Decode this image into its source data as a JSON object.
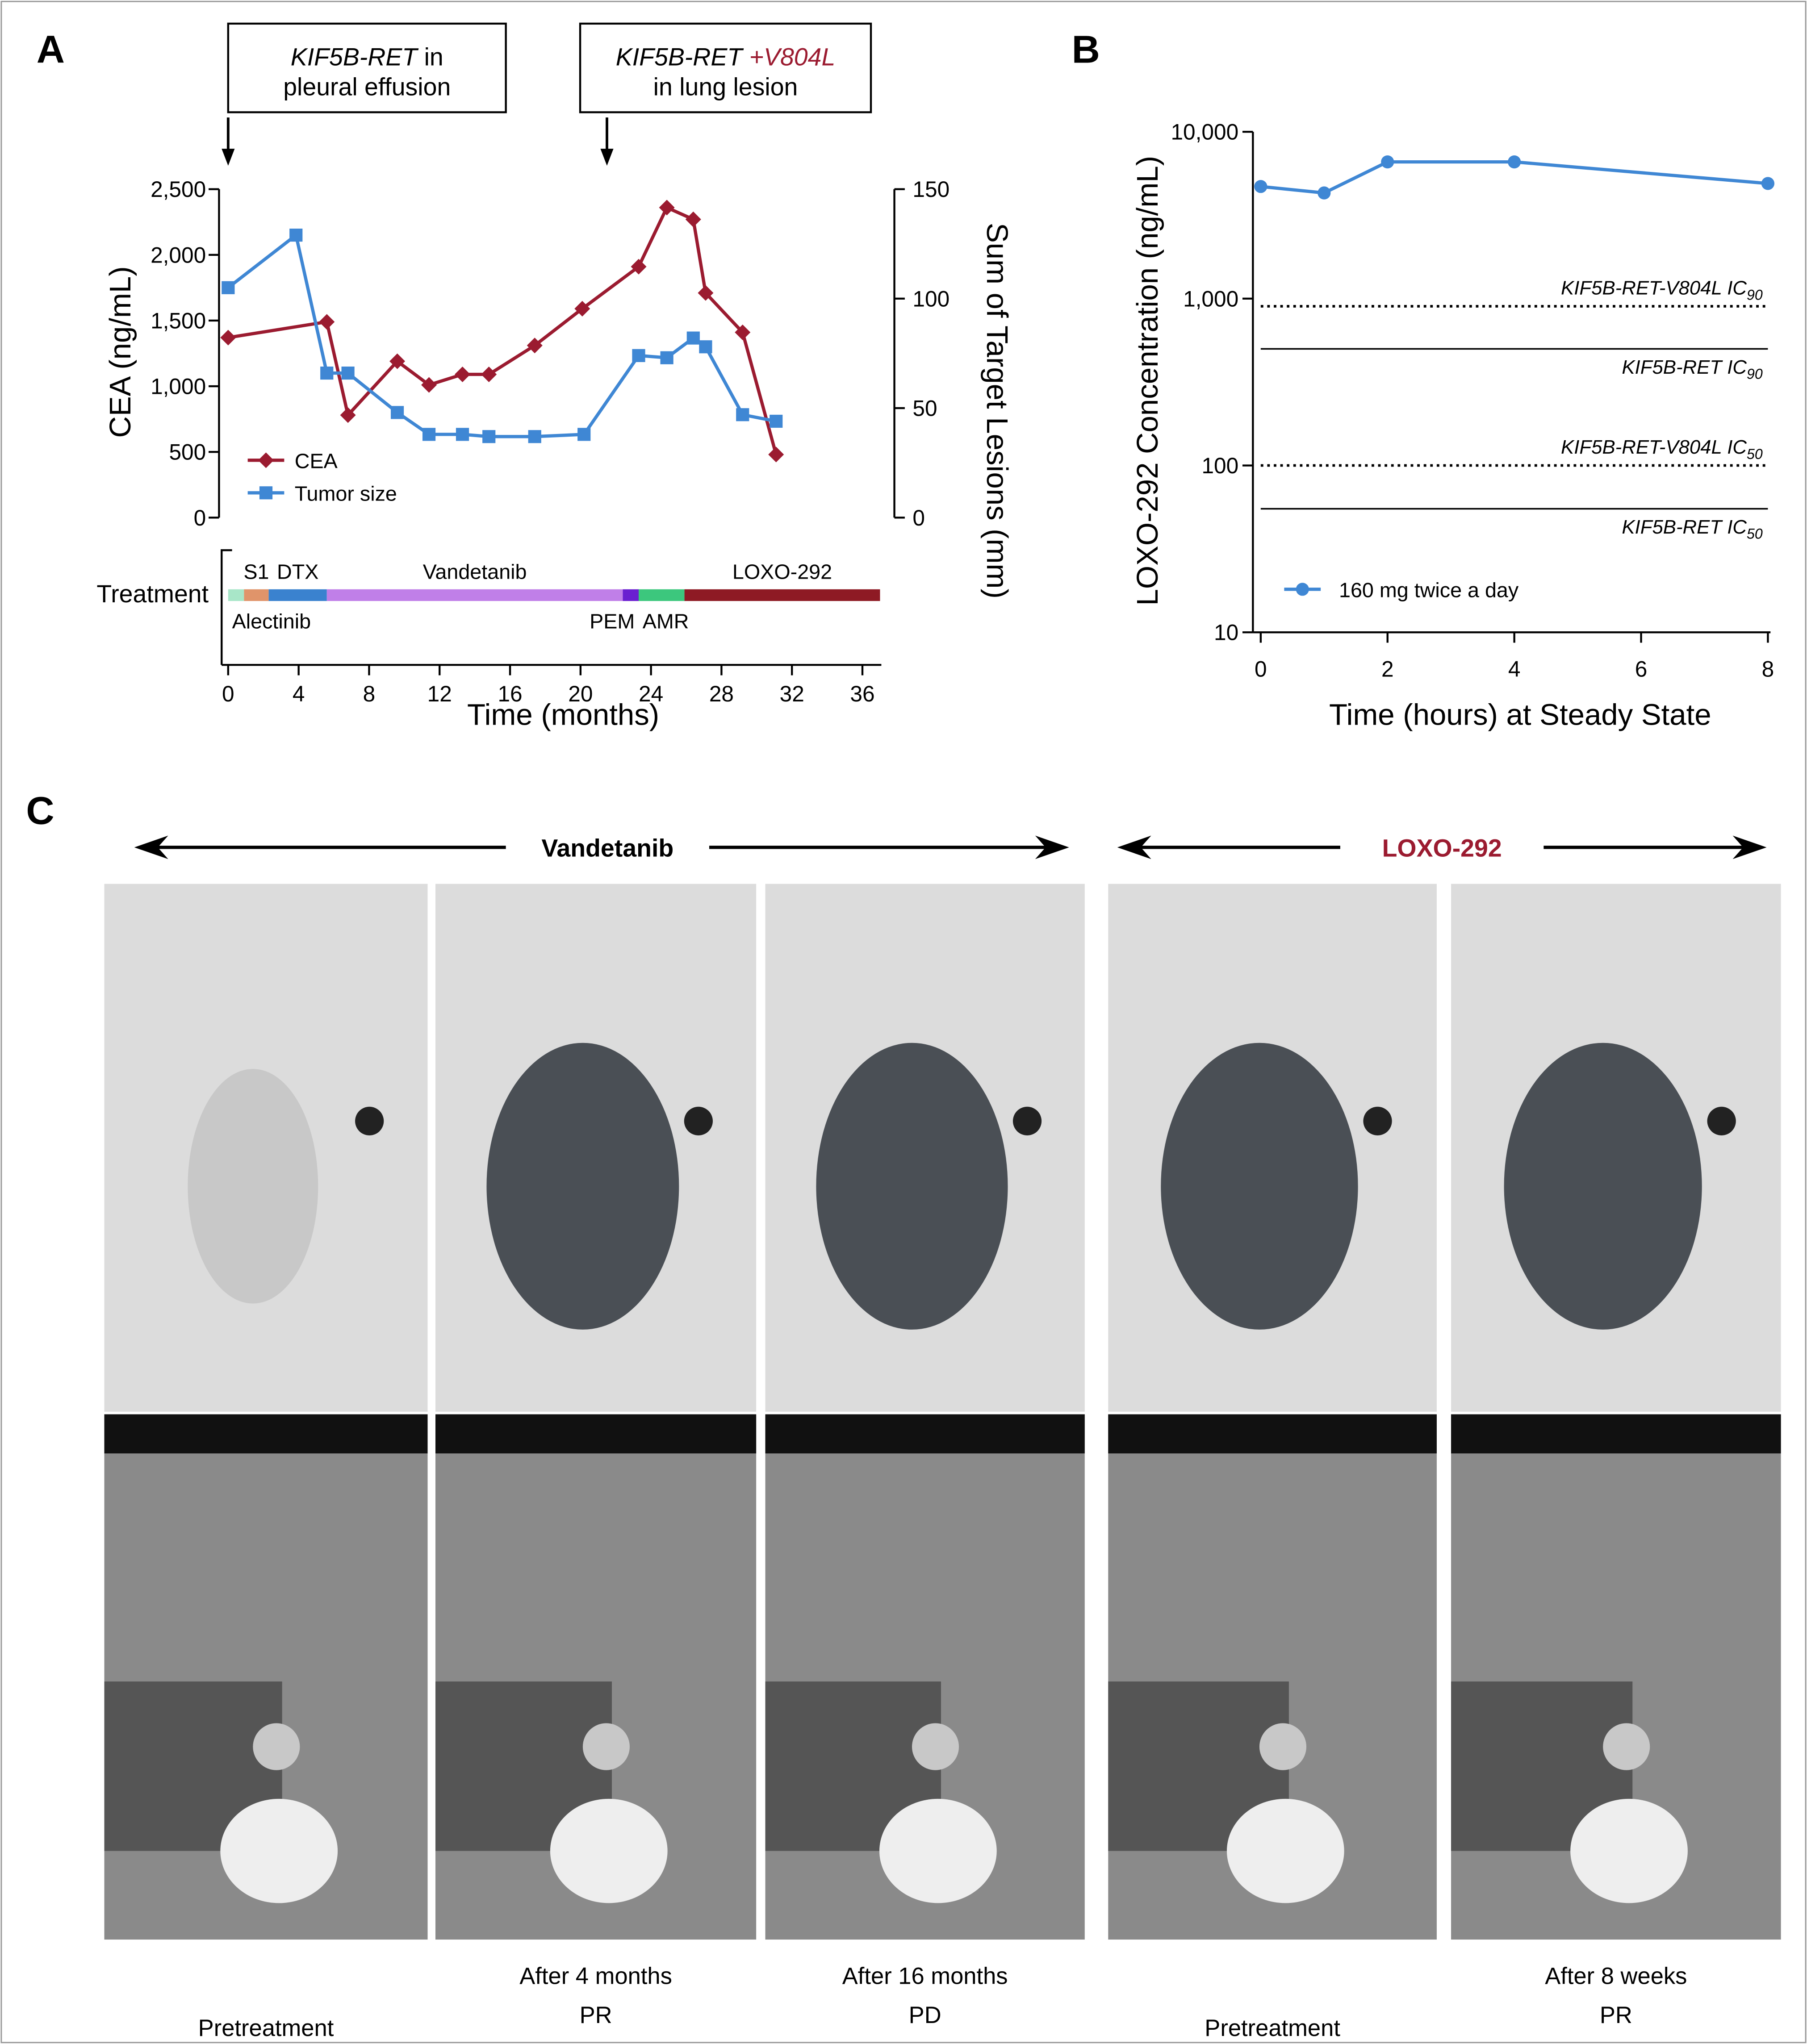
{
  "chart_data": [
    {
      "type": "line",
      "panel_label": "A",
      "xlim": [
        0,
        37
      ],
      "xticks": [
        0,
        4,
        8,
        12,
        16,
        20,
        24,
        28,
        32,
        36
      ],
      "ylim": [
        0,
        2500
      ],
      "yticks": [
        0,
        500,
        {
          "value": 1000,
          "label": "1,000"
        },
        {
          "value": 1500,
          "label": "1,500"
        },
        {
          "value": 2000,
          "label": "2,000"
        },
        {
          "value": 2500,
          "label": "2,500"
        }
      ],
      "y2lim": [
        0,
        150
      ],
      "y2ticks": [
        0,
        50,
        100,
        150
      ],
      "xlabel": "Time (months)",
      "ylabel": "CEA (ng/mL)",
      "y2label": "Sum of Target Lesions (mm)",
      "legend": "lower left",
      "series": [
        {
          "name": "CEA",
          "color": "#9b1b30",
          "marker": "diamond",
          "x": [
            0,
            5.6,
            6.8,
            9.6,
            11.4,
            13.3,
            14.8,
            17.4,
            20.1,
            23.3,
            24.9,
            26.4,
            27.1,
            29.2,
            31.1
          ],
          "values": [
            1370,
            1490,
            780,
            1190,
            1010,
            1090,
            1090,
            1310,
            1590,
            1910,
            2360,
            2270,
            1710,
            1410,
            480
          ]
        },
        {
          "name": "Tumor size",
          "color": "#3f87d4",
          "marker": "square",
          "axis": "y2",
          "x": [
            0,
            3.85,
            5.6,
            6.8,
            9.6,
            11.4,
            13.3,
            14.8,
            17.4,
            20.2,
            23.3,
            24.9,
            26.4,
            27.1,
            29.2,
            31.1
          ],
          "values": [
            105,
            129,
            66,
            66,
            48,
            38,
            38,
            37,
            37,
            38,
            74,
            73,
            82,
            78,
            47,
            44
          ]
        }
      ],
      "annotations": [
        {
          "x": 0,
          "lines": [
            [
              "KIF5B-RET",
              " in"
            ],
            [
              "pleural effusion"
            ]
          ]
        },
        {
          "x": 21.5,
          "highlight_color": "#9b1b30",
          "lines": [
            [
              "KIF5B-RET",
              " +V804L"
            ],
            [
              "in lung lesion"
            ]
          ]
        }
      ],
      "treatment_label": "Treatment",
      "treatment_segments": [
        {
          "name": "Alectinib",
          "start": 0,
          "end": 0.9,
          "color": "#a8e6c8"
        },
        {
          "name": "S1",
          "start": 0.9,
          "end": 2.3,
          "color": "#e0946a"
        },
        {
          "name": "DTX",
          "start": 2.3,
          "end": 5.6,
          "color": "#3a82cf"
        },
        {
          "name": "Vandetanib",
          "start": 5.6,
          "end": 22.4,
          "color": "#c07fe8"
        },
        {
          "name": "PEM",
          "start": 22.4,
          "end": 23.3,
          "color": "#6a1fd0"
        },
        {
          "name": "AMR",
          "start": 23.3,
          "end": 25.9,
          "color": "#3cc77d"
        },
        {
          "name": "LOXO-292",
          "start": 25.9,
          "end": 37,
          "color": "#8e1a24"
        }
      ]
    },
    {
      "type": "line",
      "panel_label": "B",
      "x": [
        0,
        1,
        2,
        4,
        8
      ],
      "xlim": [
        0,
        8
      ],
      "xticks": [
        0,
        2,
        4,
        6,
        8
      ],
      "ylim": [
        10,
        10000
      ],
      "log_scale": true,
      "yticks": [
        10,
        100,
        {
          "value": 1000,
          "label": "1,000"
        },
        {
          "value": 10000,
          "label": "10,000"
        }
      ],
      "xlabel": "Time (hours) at Steady State",
      "ylabel": "LOXO-292 Concentration (ng/mL)",
      "legend": "lower left",
      "series": [
        {
          "name": "160 mg twice a day",
          "color": "#3f87d4",
          "marker": "circle",
          "values": [
            4700,
            4300,
            6600,
            6600,
            4900
          ]
        }
      ],
      "reference_lines": [
        {
          "label": "KIF5B-RET-V804L IC",
          "subscript": "90",
          "value": 900,
          "style": "dotted"
        },
        {
          "label": "KIF5B-RET IC",
          "subscript": "90",
          "value": 500,
          "style": "solid"
        },
        {
          "label": "KIF5B-RET-V804L IC",
          "subscript": "50",
          "value": 100,
          "style": "dotted"
        },
        {
          "label": "KIF5B-RET IC",
          "subscript": "50",
          "value": 55,
          "style": "solid"
        }
      ]
    }
  ],
  "panel_c": {
    "label": "C",
    "groups": [
      {
        "name": "Vandetanib",
        "color": "#000000"
      },
      {
        "name": "LOXO-292",
        "color": "#9b1b30"
      }
    ],
    "captions": [
      [
        "Pretreatment"
      ],
      [
        "After 4 months",
        "PR"
      ],
      [
        "After 16 months",
        "PD"
      ],
      [
        "Pretreatment"
      ],
      [
        "After 8 weeks",
        "PR"
      ]
    ]
  }
}
